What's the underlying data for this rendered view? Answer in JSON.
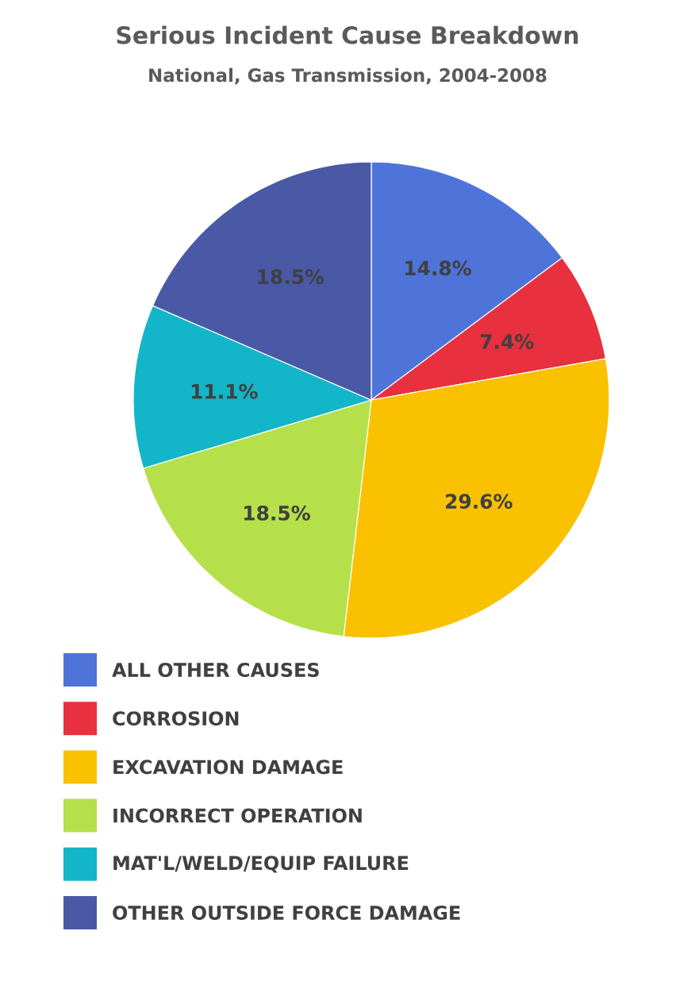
{
  "chart_data": {
    "type": "pie",
    "title": "Serious Incident Cause Breakdown",
    "subtitle": "National, Gas Transmission, 2004-2008",
    "categories": [
      "ALL OTHER CAUSES",
      "CORROSION",
      "EXCAVATION DAMAGE",
      "INCORRECT OPERATION",
      "MAT'L/WELD/EQUIP FAILURE",
      "OTHER OUTSIDE FORCE DAMAGE"
    ],
    "values": [
      14.8,
      7.4,
      29.6,
      18.5,
      11.1,
      18.5
    ],
    "value_labels": [
      "14.8%",
      "7.4%",
      "29.6%",
      "18.5%",
      "11.1%",
      "18.5%"
    ],
    "colors": [
      "#4f74d9",
      "#e8303e",
      "#f9c100",
      "#b5e04a",
      "#13b5c8",
      "#4a59a6"
    ],
    "legend": "bottom"
  }
}
